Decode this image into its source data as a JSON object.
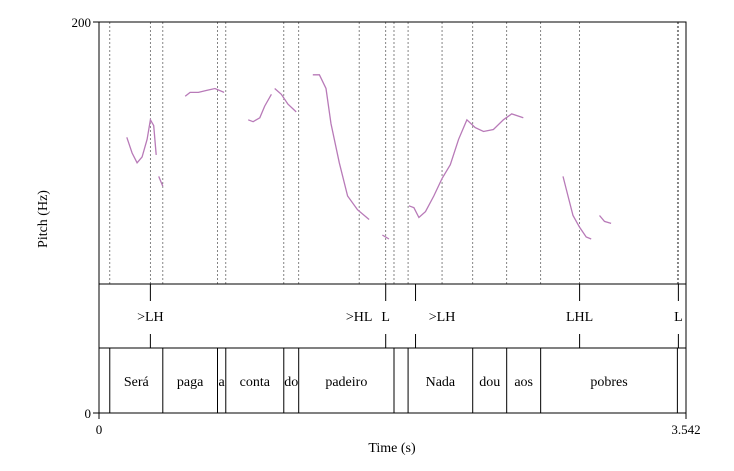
{
  "chart_data": {
    "type": "line",
    "xlabel": "Time (s)",
    "ylabel": "Pitch (Hz)",
    "xlim": [
      0,
      3.542
    ],
    "ylim": [
      0,
      200
    ],
    "x_tick_labels": [
      "0",
      "3.542"
    ],
    "y_tick_labels": [
      "0",
      "200"
    ],
    "series_color": "#b87ab8",
    "pitch_segments": [
      [
        [
          0.168,
          141
        ],
        [
          0.2,
          133
        ],
        [
          0.23,
          128
        ],
        [
          0.26,
          131
        ],
        [
          0.29,
          140
        ],
        [
          0.31,
          150
        ],
        [
          0.33,
          147
        ],
        [
          0.345,
          132
        ]
      ],
      [
        [
          0.36,
          121
        ],
        [
          0.385,
          116
        ]
      ],
      [
        [
          0.52,
          162
        ],
        [
          0.55,
          164
        ],
        [
          0.6,
          164
        ],
        [
          0.65,
          165
        ],
        [
          0.7,
          166
        ],
        [
          0.755,
          164
        ]
      ],
      [
        [
          0.9,
          150
        ],
        [
          0.93,
          149
        ],
        [
          0.97,
          151
        ],
        [
          1.0,
          157
        ],
        [
          1.04,
          163
        ]
      ],
      [
        [
          1.06,
          166
        ],
        [
          1.1,
          163
        ],
        [
          1.14,
          158
        ],
        [
          1.19,
          154
        ]
      ],
      [
        [
          1.29,
          173
        ],
        [
          1.33,
          173
        ],
        [
          1.37,
          166
        ],
        [
          1.4,
          148
        ],
        [
          1.45,
          128
        ],
        [
          1.5,
          111
        ],
        [
          1.56,
          104
        ],
        [
          1.63,
          99
        ]
      ],
      [
        [
          1.71,
          91
        ],
        [
          1.75,
          89
        ]
      ],
      [
        [
          1.87,
          106
        ],
        [
          1.9,
          105
        ],
        [
          1.93,
          100
        ],
        [
          1.97,
          103
        ],
        [
          2.02,
          111
        ],
        [
          2.07,
          120
        ],
        [
          2.12,
          127
        ],
        [
          2.17,
          140
        ],
        [
          2.22,
          150
        ],
        [
          2.27,
          146
        ],
        [
          2.32,
          144
        ],
        [
          2.38,
          145
        ],
        [
          2.44,
          150
        ],
        [
          2.49,
          153
        ],
        [
          2.56,
          151
        ]
      ],
      [
        [
          2.8,
          121
        ],
        [
          2.83,
          111
        ],
        [
          2.86,
          101
        ],
        [
          2.9,
          95
        ],
        [
          2.94,
          90
        ],
        [
          2.97,
          89
        ]
      ],
      [
        [
          3.02,
          101
        ],
        [
          3.05,
          98
        ],
        [
          3.09,
          97
        ]
      ]
    ],
    "tones_tier": {
      "boundaries": [
        0.31,
        1.73,
        1.91,
        2.9,
        3.496
      ],
      "labels": [
        {
          "text": ">LH",
          "x": 0.31
        },
        {
          "text": ">HL",
          "x": 1.57
        },
        {
          "text": "L",
          "x": 1.73
        },
        {
          "text": ">LH",
          "x": 2.07
        },
        {
          "text": "LHL",
          "x": 2.9
        },
        {
          "text": "L",
          "x": 3.496
        }
      ]
    },
    "words_tier": {
      "boundaries": [
        0.065,
        0.385,
        0.715,
        0.765,
        1.115,
        1.205,
        1.78,
        1.865,
        2.255,
        2.46,
        2.665,
        3.49
      ],
      "labels": [
        "Será",
        "paga",
        "a",
        "conta",
        "do",
        "padeiro",
        "",
        "Nada",
        "dou",
        "aos",
        "pobres"
      ]
    },
    "guide_lines_x": [
      0.065,
      0.31,
      0.385,
      0.715,
      0.765,
      1.115,
      1.205,
      1.57,
      1.73,
      1.78,
      1.865,
      2.07,
      2.255,
      2.46,
      2.665,
      2.9,
      3.49,
      3.496
    ]
  }
}
